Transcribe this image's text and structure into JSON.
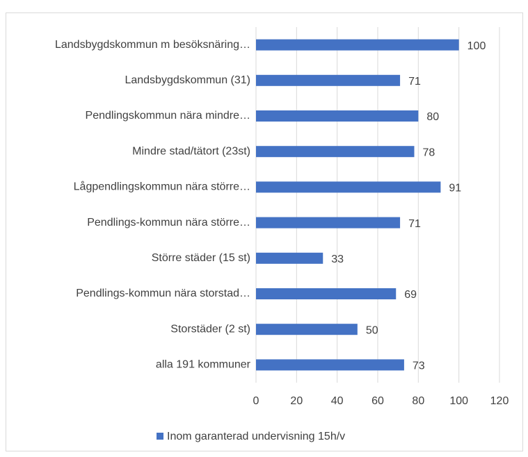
{
  "chart_data": {
    "type": "barh",
    "categories": [
      "Landsbygdskommun m besöksnäring…",
      "Landsbygdskommun (31)",
      "Pendlingskommun nära mindre…",
      "Mindre stad/tätort (23st)",
      "Lågpendlingskommun nära större…",
      "Pendlings-kommun nära större…",
      "Större städer (15 st)",
      "Pendlings-kommun nära storstad…",
      "Storstäder (2 st)",
      "alla  191 kommuner"
    ],
    "series": [
      {
        "name": "Inom garanterad undervisning 15h/v",
        "color": "#4472c4",
        "values": [
          100,
          71,
          80,
          78,
          91,
          71,
          33,
          69,
          50,
          73
        ]
      }
    ],
    "xlim": [
      0,
      120
    ],
    "xticks": [
      0,
      20,
      40,
      60,
      80,
      100,
      120
    ],
    "grid": true,
    "legend": "bottom"
  }
}
